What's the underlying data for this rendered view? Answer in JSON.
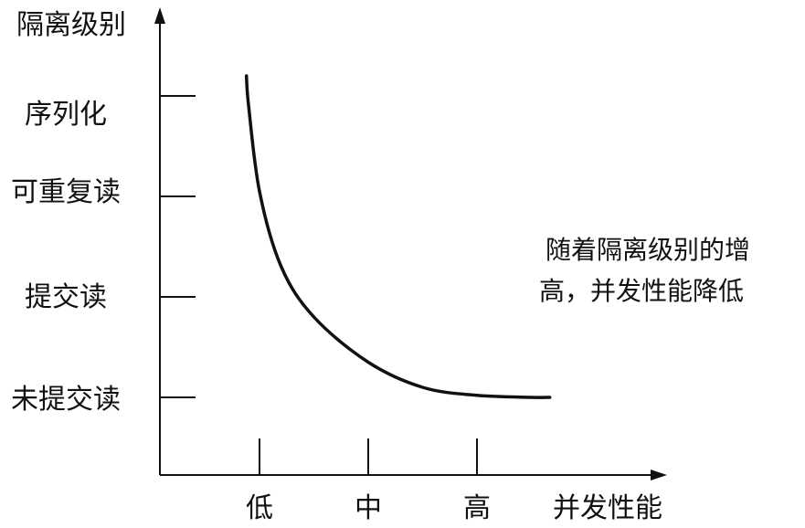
{
  "chart_data": {
    "type": "line",
    "ylabel": "隔离级别",
    "xlabel": "并发性能",
    "y_categories": [
      "未提交读",
      "提交读",
      "可重复读",
      "序列化"
    ],
    "x_categories": [
      "低",
      "中",
      "高"
    ],
    "annotation": [
      "随着隔离级别的增",
      "高，并发性能降低"
    ],
    "series": [
      {
        "x": [
          0.88,
          0.9,
          1.0,
          1.2,
          1.5,
          2.0,
          2.5,
          3.0,
          3.5,
          3.67
        ],
        "y": [
          3.2,
          2.9,
          2.05,
          1.3,
          0.8,
          0.35,
          0.1,
          0.02,
          0.0,
          0.0
        ]
      }
    ],
    "xlim": [
      0,
      4.7
    ],
    "ylim": [
      -0.6,
      3.5
    ],
    "grid": false,
    "legend": "none"
  }
}
